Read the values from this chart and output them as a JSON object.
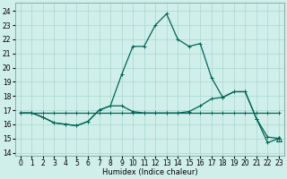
{
  "xlabel": "Humidex (Indice chaleur)",
  "bg_color": "#d0eeea",
  "grid_color": "#a8d8d0",
  "line_color": "#006655",
  "ylim": [
    13.8,
    24.6
  ],
  "xlim": [
    -0.5,
    23.5
  ],
  "yticks": [
    14,
    15,
    16,
    17,
    18,
    19,
    20,
    21,
    22,
    23,
    24
  ],
  "xticks": [
    0,
    1,
    2,
    3,
    4,
    5,
    6,
    7,
    8,
    9,
    10,
    11,
    12,
    13,
    14,
    15,
    16,
    17,
    18,
    19,
    20,
    21,
    22,
    23
  ],
  "line_flat_x": [
    0,
    1,
    2,
    3,
    4,
    5,
    6,
    7,
    8,
    9,
    10,
    11,
    12,
    13,
    14,
    15,
    16,
    17,
    18,
    19,
    20,
    21,
    22,
    23
  ],
  "line_flat_y": [
    16.8,
    16.8,
    16.8,
    16.8,
    16.8,
    16.8,
    16.8,
    16.8,
    16.8,
    16.8,
    16.8,
    16.8,
    16.8,
    16.8,
    16.8,
    16.8,
    16.8,
    16.8,
    16.8,
    16.8,
    16.8,
    16.8,
    16.8,
    16.8
  ],
  "line_low_x": [
    0,
    1,
    2,
    3,
    4,
    5,
    6,
    7,
    8,
    9,
    10,
    11,
    12,
    13,
    14,
    15,
    16,
    17,
    18,
    19,
    20,
    21,
    22,
    23
  ],
  "line_low_y": [
    16.8,
    16.8,
    16.5,
    16.1,
    16.0,
    15.9,
    16.2,
    17.0,
    17.3,
    17.3,
    16.9,
    16.8,
    16.8,
    16.8,
    16.8,
    16.9,
    17.3,
    17.8,
    17.9,
    18.3,
    18.3,
    16.4,
    14.7,
    15.0
  ],
  "line_high_x": [
    0,
    1,
    2,
    3,
    4,
    5,
    6,
    7,
    8,
    9,
    10,
    11,
    12,
    13,
    14,
    15,
    16,
    17,
    18,
    19,
    20,
    21,
    22,
    23
  ],
  "line_high_y": [
    16.8,
    16.8,
    16.5,
    16.1,
    16.0,
    15.9,
    16.2,
    17.0,
    17.3,
    19.5,
    21.5,
    21.5,
    23.0,
    23.8,
    22.0,
    21.5,
    21.7,
    19.3,
    17.9,
    18.3,
    18.3,
    16.4,
    15.1,
    15.0
  ],
  "lw": 0.9,
  "ms": 2.5,
  "mew": 0.7,
  "fontsize_ticks": 5.5,
  "fontsize_axis": 6.0
}
